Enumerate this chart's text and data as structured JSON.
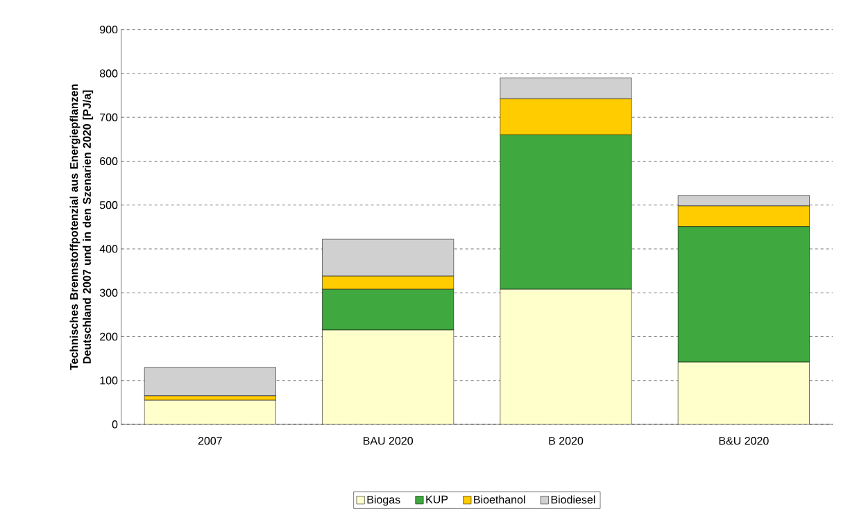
{
  "chart_data": {
    "type": "bar",
    "stacked": true,
    "ylabel": "Technisches Brennstoffpotenzial aus Energiepflanzen Deutschland 2007 und in den Szenarien 2020 [PJ/a]",
    "categories": [
      "2007",
      "BAU 2020",
      "B 2020",
      "B&U 2020"
    ],
    "series": [
      {
        "name": "Biogas",
        "color": "#ffffcc",
        "values": [
          55,
          215,
          308,
          142
        ]
      },
      {
        "name": "KUP",
        "color": "#3fa83f",
        "values": [
          0,
          93,
          352,
          309
        ]
      },
      {
        "name": "Bioethanol",
        "color": "#ffcc00",
        "values": [
          10,
          30,
          82,
          47
        ]
      },
      {
        "name": "Biodiesel",
        "color": "#d0d0d0",
        "values": [
          65,
          84,
          48,
          24
        ]
      }
    ],
    "ylim": [
      0,
      900
    ],
    "yticks": [
      0,
      100,
      200,
      300,
      400,
      500,
      600,
      700,
      800,
      900
    ],
    "grid": "y",
    "legend": "bottom"
  }
}
